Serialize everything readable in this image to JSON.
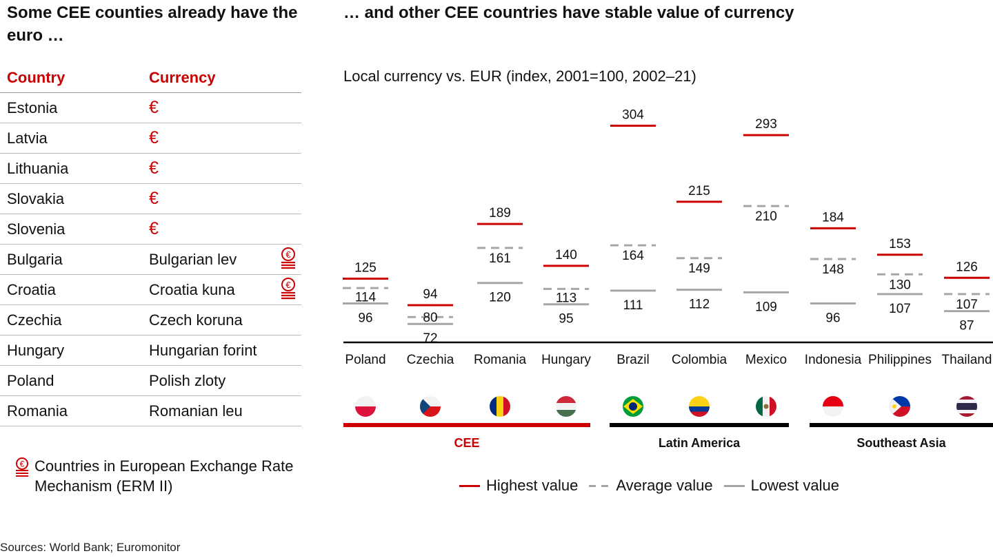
{
  "left_title": "Some CEE counties already have the euro …",
  "right_title": "… and other CEE countries have stable value of currency",
  "table": {
    "headers": [
      "Country",
      "Currency"
    ],
    "rows": [
      {
        "country": "Estonia",
        "currency": "€",
        "erm": false
      },
      {
        "country": "Latvia",
        "currency": "€",
        "erm": false
      },
      {
        "country": "Lithuania",
        "currency": "€",
        "erm": false
      },
      {
        "country": "Slovakia",
        "currency": "€",
        "erm": false
      },
      {
        "country": "Slovenia",
        "currency": "€",
        "erm": false
      },
      {
        "country": "Bulgaria",
        "currency": "Bulgarian lev",
        "erm": true
      },
      {
        "country": "Croatia",
        "currency": "Croatia kuna",
        "erm": true
      },
      {
        "country": "Czechia",
        "currency": "Czech koruna",
        "erm": false
      },
      {
        "country": "Hungary",
        "currency": "Hungarian forint",
        "erm": false
      },
      {
        "country": "Poland",
        "currency": "Polish zloty",
        "erm": false
      },
      {
        "country": "Romania",
        "currency": "Romanian leu",
        "erm": false
      }
    ]
  },
  "erm_note": "Countries in European Exchange Rate Mechanism (ERM II)",
  "sources": "Sources: World Bank; Euromonitor",
  "colors": {
    "highest": "#cc0000",
    "average": "#a6a6a6",
    "lowest": "#a6a6a6",
    "cee": "#cc0000",
    "other_groups": "#000000",
    "erm_icon": "#cc0000"
  },
  "chart_data": {
    "type": "range",
    "subtitle": "Local currency vs. EUR (index, 2001=100, 2002–21)",
    "categories": [
      "Poland",
      "Czechia",
      "Romania",
      "Hungary",
      "Brazil",
      "Colombia",
      "Mexico",
      "Indonesia",
      "Philippines",
      "Thailand"
    ],
    "series": [
      {
        "name": "Highest value",
        "values": [
          125,
          94,
          189,
          140,
          304,
          215,
          293,
          184,
          153,
          126
        ]
      },
      {
        "name": "Average value",
        "values": [
          114,
          80,
          161,
          113,
          164,
          149,
          210,
          148,
          130,
          107
        ]
      },
      {
        "name": "Lowest value",
        "values": [
          96,
          72,
          120,
          95,
          111,
          112,
          109,
          96,
          107,
          87
        ]
      }
    ],
    "groups": [
      {
        "name": "CEE",
        "from": 0,
        "to": 3
      },
      {
        "name": "Latin America",
        "from": 4,
        "to": 6
      },
      {
        "name": "Southeast Asia",
        "from": 7,
        "to": 9
      }
    ],
    "flags": [
      "poland-flag",
      "czechia-flag",
      "romania-flag",
      "hungary-flag",
      "brazil-flag",
      "colombia-flag",
      "mexico-flag",
      "indonesia-flag",
      "philippines-flag",
      "thailand-flag"
    ],
    "legend": [
      "Highest value",
      "Average value",
      "Lowest value"
    ]
  }
}
